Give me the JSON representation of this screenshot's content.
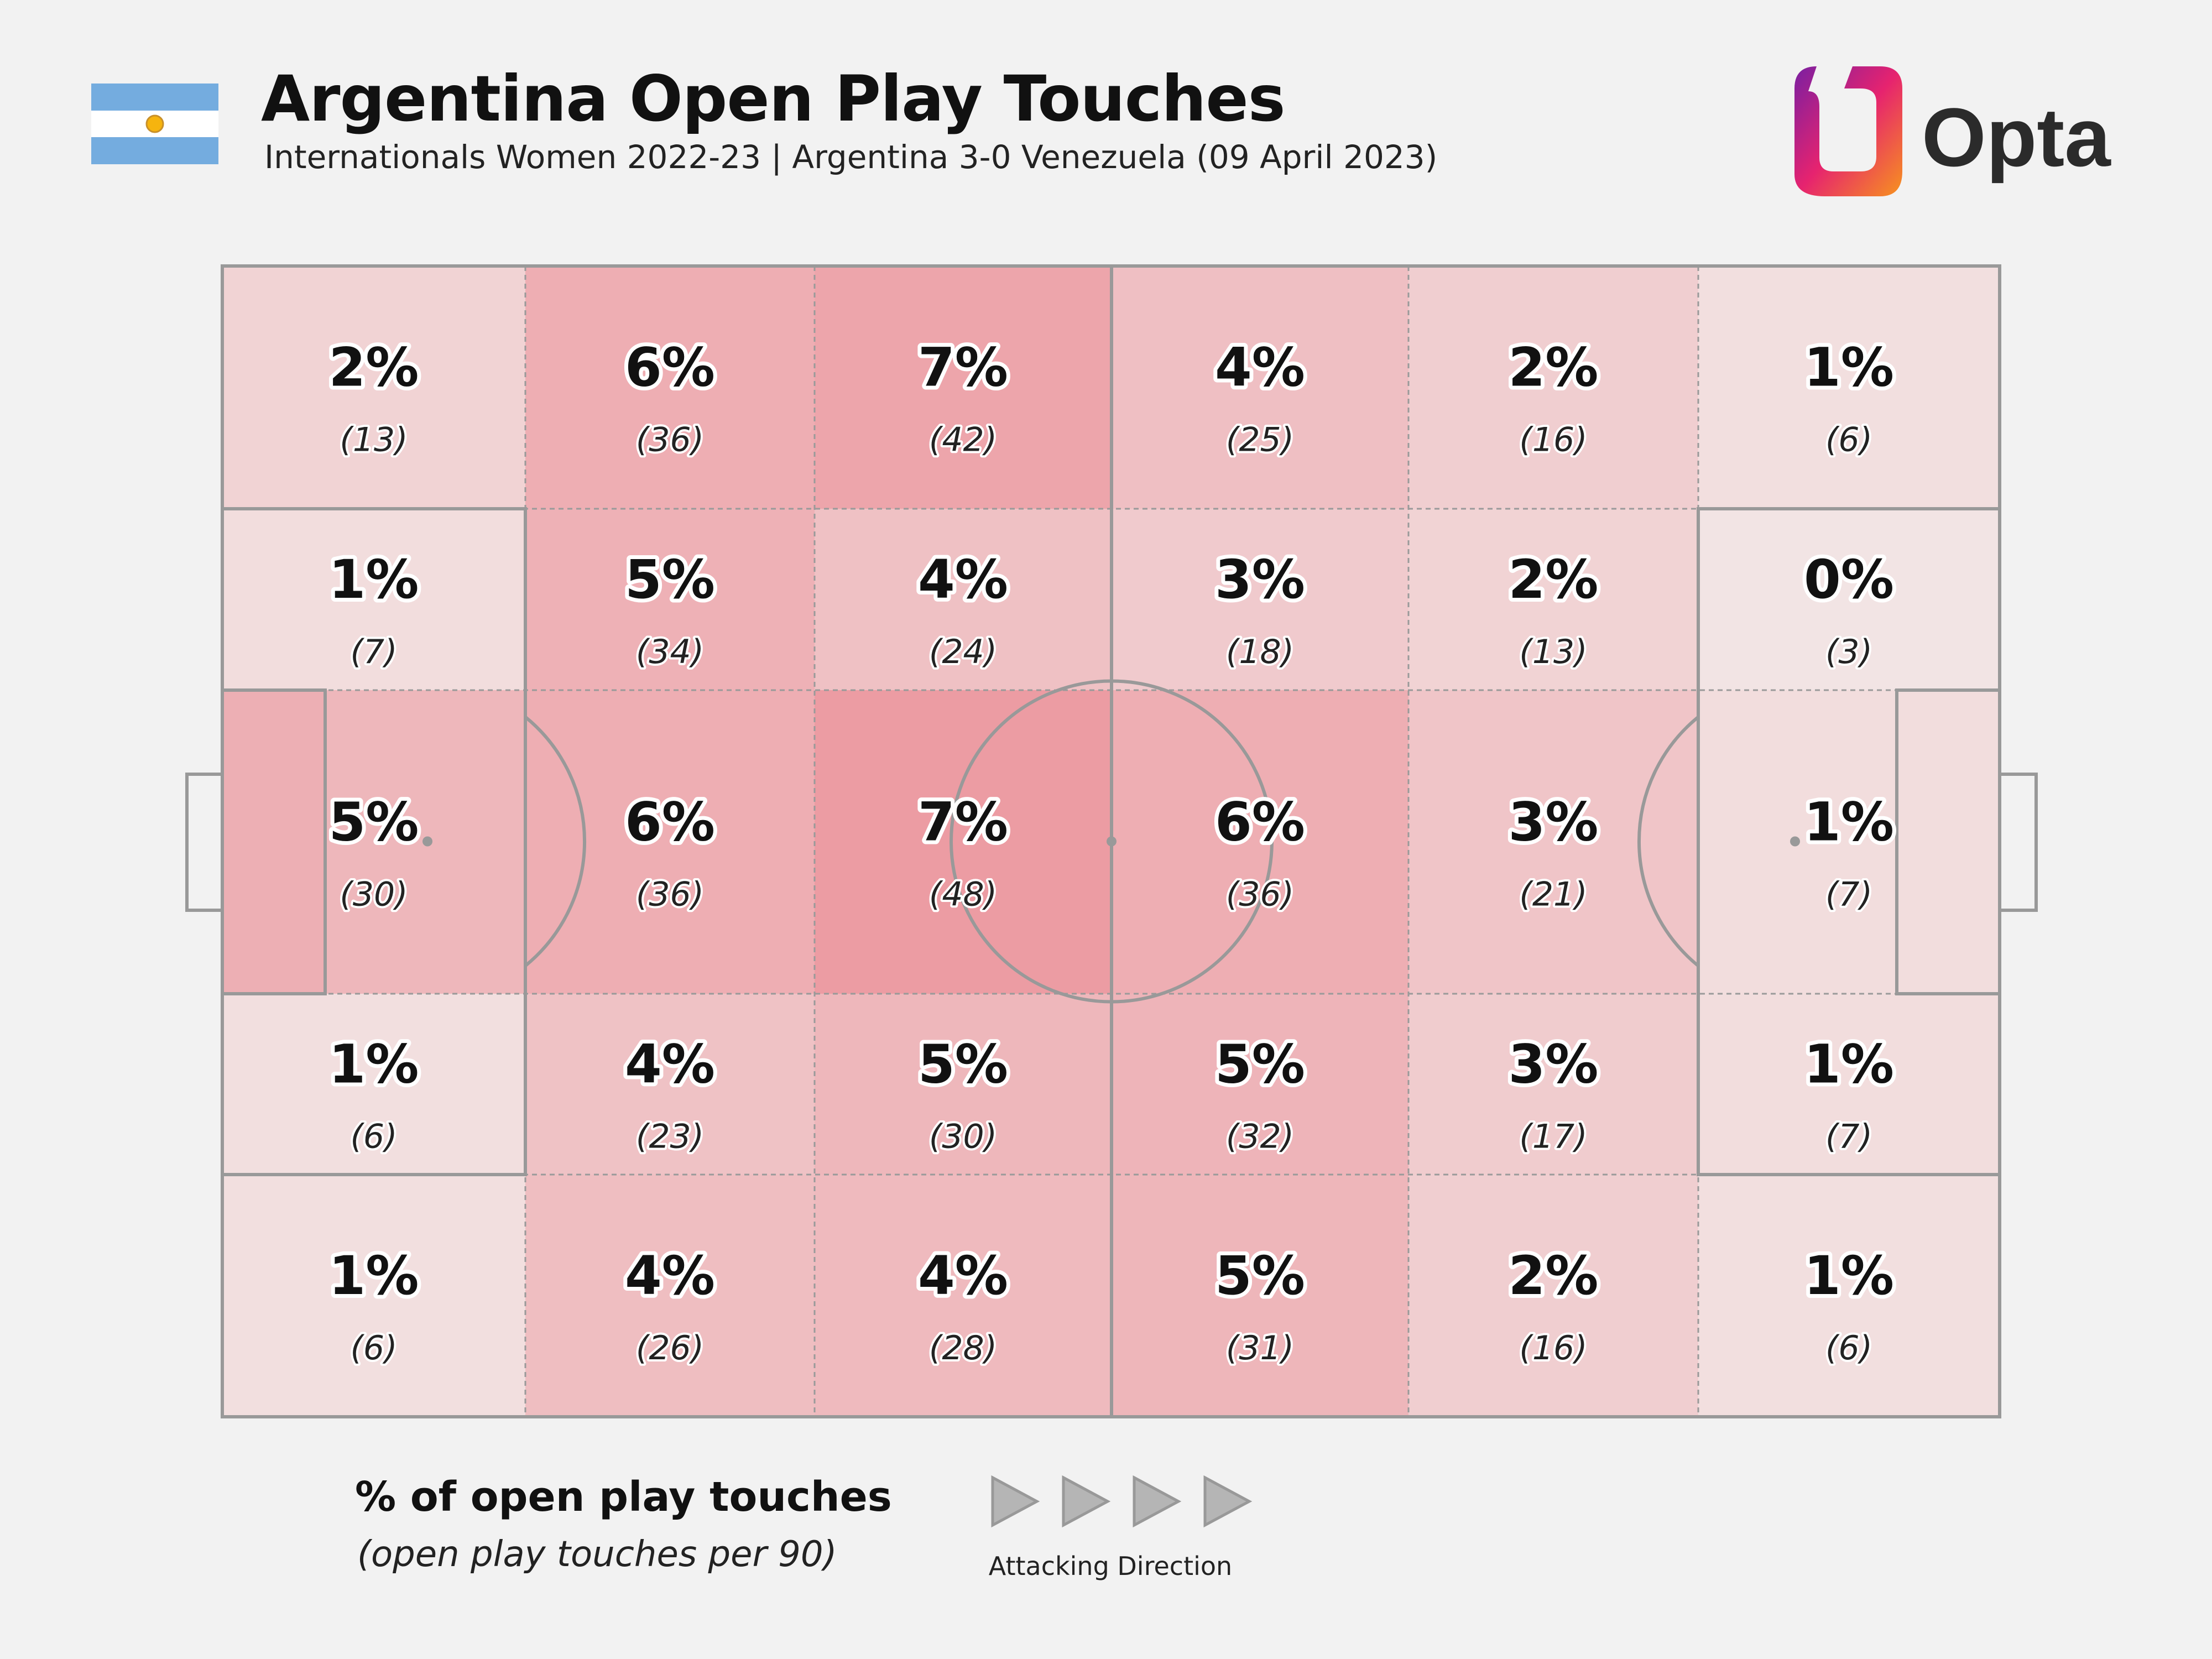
{
  "header": {
    "title": "Argentina Open Play Touches",
    "subtitle": "Internationals Women 2022-23 | Argentina 3-0 Venezuela (09 April 2023)",
    "flag_icon": "argentina-flag-icon",
    "logo_text": "Opta"
  },
  "colors": {
    "background": "#f2f2f2",
    "line": "#999999",
    "heat_low": "#f3ebea",
    "heat_high": "#ec9ca3",
    "flag_blue": "#74acdf",
    "sun": "#f6b40e"
  },
  "chart_data": {
    "type": "heatmap",
    "title": "Argentina Open Play Touches",
    "attacking_direction": "left-to-right",
    "cells": [
      [
        {
          "pct": "2%",
          "count": "(13)",
          "value": 13
        },
        {
          "pct": "6%",
          "count": "(36)",
          "value": 36
        },
        {
          "pct": "7%",
          "count": "(42)",
          "value": 42
        },
        {
          "pct": "4%",
          "count": "(25)",
          "value": 25
        },
        {
          "pct": "2%",
          "count": "(16)",
          "value": 16
        },
        {
          "pct": "1%",
          "count": "(6)",
          "value": 6
        }
      ],
      [
        {
          "pct": "1%",
          "count": "(7)",
          "value": 7
        },
        {
          "pct": "5%",
          "count": "(34)",
          "value": 34
        },
        {
          "pct": "4%",
          "count": "(24)",
          "value": 24
        },
        {
          "pct": "3%",
          "count": "(18)",
          "value": 18
        },
        {
          "pct": "2%",
          "count": "(13)",
          "value": 13
        },
        {
          "pct": "0%",
          "count": "(3)",
          "value": 3
        }
      ],
      [
        {
          "pct": "5%",
          "count": "(30)",
          "value": 30
        },
        {
          "pct": "6%",
          "count": "(36)",
          "value": 36
        },
        {
          "pct": "7%",
          "count": "(48)",
          "value": 48
        },
        {
          "pct": "6%",
          "count": "(36)",
          "value": 36
        },
        {
          "pct": "3%",
          "count": "(21)",
          "value": 21
        },
        {
          "pct": "1%",
          "count": "(7)",
          "value": 7
        }
      ],
      [
        {
          "pct": "1%",
          "count": "(6)",
          "value": 6
        },
        {
          "pct": "4%",
          "count": "(23)",
          "value": 23
        },
        {
          "pct": "5%",
          "count": "(30)",
          "value": 30
        },
        {
          "pct": "5%",
          "count": "(32)",
          "value": 32
        },
        {
          "pct": "3%",
          "count": "(17)",
          "value": 17
        },
        {
          "pct": "1%",
          "count": "(7)",
          "value": 7
        }
      ],
      [
        {
          "pct": "1%",
          "count": "(6)",
          "value": 6
        },
        {
          "pct": "4%",
          "count": "(26)",
          "value": 26
        },
        {
          "pct": "4%",
          "count": "(28)",
          "value": 28
        },
        {
          "pct": "5%",
          "count": "(31)",
          "value": 31
        },
        {
          "pct": "2%",
          "count": "(16)",
          "value": 16
        },
        {
          "pct": "1%",
          "count": "(6)",
          "value": 6
        }
      ]
    ]
  },
  "legend": {
    "title": "% of open play touches",
    "subtitle": "(open play touches per 90)",
    "direction_label": "Attacking Direction"
  }
}
